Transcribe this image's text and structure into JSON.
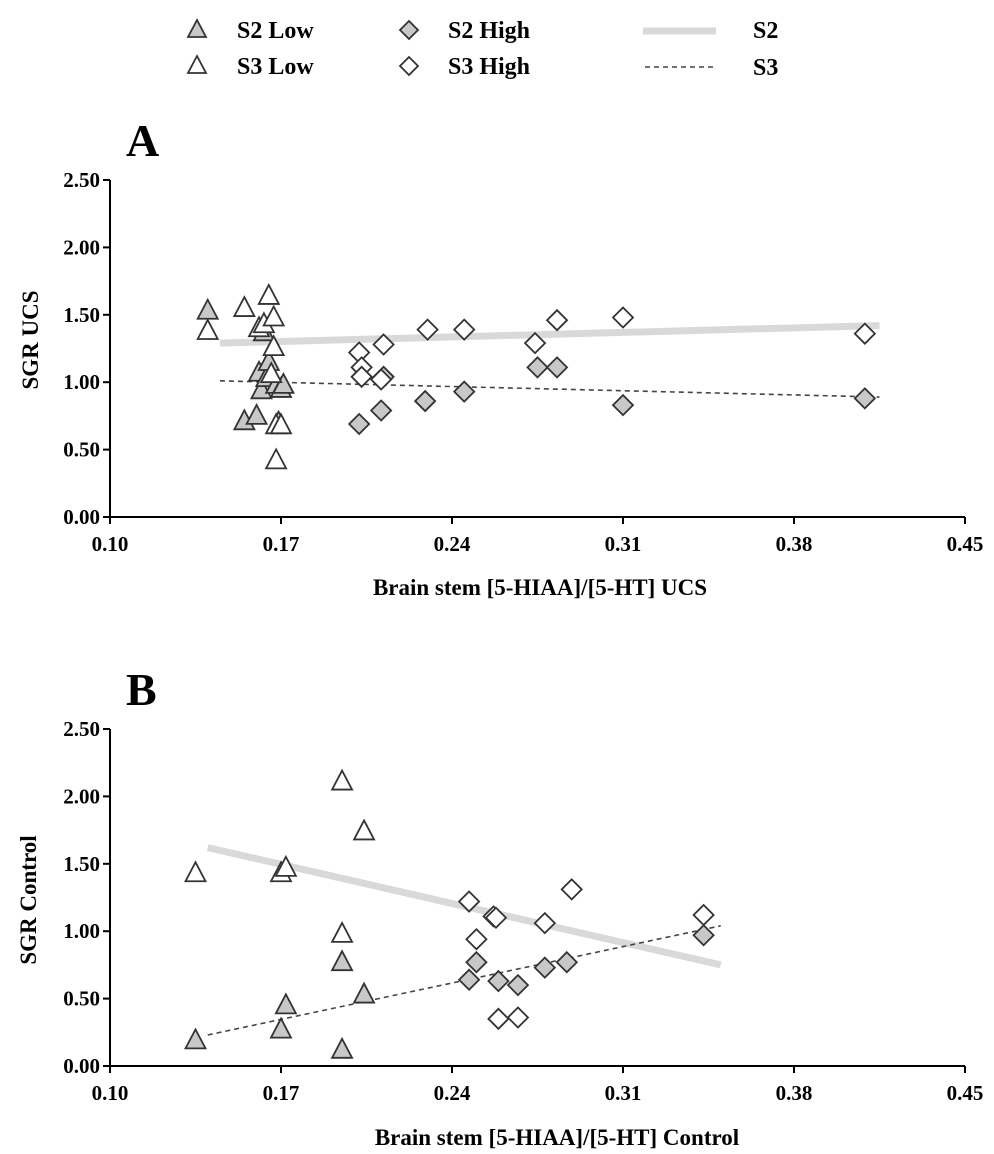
{
  "legend": {
    "items": [
      {
        "key": "s2_low",
        "label": "S2 Low",
        "kind": "triangle",
        "fill": "#c8c8c8"
      },
      {
        "key": "s3_low",
        "label": "S3 Low",
        "kind": "triangle",
        "fill": "#ffffff"
      },
      {
        "key": "s2_high",
        "label": "S2 High",
        "kind": "diamond",
        "fill": "#c8c8c8"
      },
      {
        "key": "s3_high",
        "label": "S3 High",
        "kind": "diamond",
        "fill": "#ffffff"
      },
      {
        "key": "s2_line",
        "label": "S2",
        "kind": "solid-line",
        "color": "#d9d9d9"
      },
      {
        "key": "s3_line",
        "label": "S3",
        "kind": "dashed-line",
        "color": "#444444"
      }
    ]
  },
  "chart_data": [
    {
      "panel": "A",
      "type": "scatter",
      "xlabel": "Brain stem [5-HIAA]/[5-HT] UCS",
      "ylabel": "SGR UCS",
      "xlim": [
        0.1,
        0.45
      ],
      "ylim": [
        0.0,
        2.5
      ],
      "xticks": [
        "0.10",
        "0.17",
        "0.24",
        "0.31",
        "0.38",
        "0.45"
      ],
      "yticks": [
        "0.00",
        "0.50",
        "1.00",
        "1.50",
        "2.00",
        "2.50"
      ],
      "series": [
        {
          "name": "S2 Low",
          "marker": "triangle",
          "fill": "#c8c8c8",
          "x": [
            0.14,
            0.155,
            0.16,
            0.161,
            0.162,
            0.163,
            0.164,
            0.165,
            0.168,
            0.169,
            0.17,
            0.171
          ],
          "y": [
            1.53,
            0.71,
            0.75,
            1.07,
            0.94,
            1.37,
            1.03,
            1.15,
            0.98,
            0.7,
            0.95,
            0.98
          ]
        },
        {
          "name": "S3 Low",
          "marker": "triangle",
          "fill": "#ffffff",
          "x": [
            0.14,
            0.155,
            0.161,
            0.163,
            0.165,
            0.166,
            0.167,
            0.167,
            0.168,
            0.168,
            0.17
          ],
          "y": [
            1.38,
            1.55,
            1.4,
            1.43,
            1.64,
            1.06,
            1.48,
            1.26,
            0.68,
            0.42,
            0.68
          ]
        },
        {
          "name": "S2 High",
          "marker": "diamond",
          "fill": "#c8c8c8",
          "x": [
            0.202,
            0.211,
            0.212,
            0.229,
            0.245,
            0.275,
            0.283,
            0.31,
            0.409
          ],
          "y": [
            0.69,
            0.79,
            1.04,
            0.86,
            0.93,
            1.11,
            1.11,
            0.83,
            0.88
          ]
        },
        {
          "name": "S3 High",
          "marker": "diamond",
          "fill": "#ffffff",
          "x": [
            0.202,
            0.203,
            0.203,
            0.211,
            0.212,
            0.23,
            0.245,
            0.274,
            0.283,
            0.31,
            0.409
          ],
          "y": [
            1.22,
            1.11,
            1.04,
            1.02,
            1.28,
            1.39,
            1.39,
            1.29,
            1.46,
            1.48,
            1.36
          ]
        }
      ],
      "lines": [
        {
          "name": "S2",
          "style": "solid",
          "x": [
            0.145,
            0.415
          ],
          "y": [
            1.29,
            1.42
          ]
        },
        {
          "name": "S3",
          "style": "dashed",
          "x": [
            0.145,
            0.415
          ],
          "y": [
            1.01,
            0.89
          ]
        }
      ]
    },
    {
      "panel": "B",
      "type": "scatter",
      "xlabel": "Brain stem [5-HIAA]/[5-HT] Control",
      "ylabel": "SGR Control",
      "xlim": [
        0.1,
        0.45
      ],
      "ylim": [
        0.0,
        2.5
      ],
      "xticks": [
        "0.10",
        "0.17",
        "0.24",
        "0.31",
        "0.38",
        "0.45"
      ],
      "yticks": [
        "0.00",
        "0.50",
        "1.00",
        "1.50",
        "2.00",
        "2.50"
      ],
      "series": [
        {
          "name": "S2 Low",
          "marker": "triangle",
          "fill": "#c8c8c8",
          "x": [
            0.135,
            0.17,
            0.172,
            0.195,
            0.195,
            0.204
          ],
          "y": [
            0.19,
            0.27,
            0.45,
            0.77,
            0.12,
            0.53
          ]
        },
        {
          "name": "S3 Low",
          "marker": "triangle",
          "fill": "#ffffff",
          "x": [
            0.135,
            0.17,
            0.172,
            0.195,
            0.195,
            0.204
          ],
          "y": [
            1.43,
            1.43,
            1.47,
            2.11,
            0.98,
            1.74
          ]
        },
        {
          "name": "S2 High",
          "marker": "diamond",
          "fill": "#c8c8c8",
          "x": [
            0.247,
            0.25,
            0.259,
            0.267,
            0.278,
            0.287,
            0.343
          ],
          "y": [
            0.64,
            0.77,
            0.63,
            0.6,
            0.73,
            0.77,
            0.97
          ]
        },
        {
          "name": "S3 High",
          "marker": "diamond",
          "fill": "#ffffff",
          "x": [
            0.247,
            0.25,
            0.257,
            0.258,
            0.259,
            0.267,
            0.278,
            0.289,
            0.343
          ],
          "y": [
            1.22,
            0.94,
            1.11,
            1.1,
            0.35,
            0.36,
            1.06,
            1.31,
            1.12
          ]
        }
      ],
      "lines": [
        {
          "name": "S2",
          "style": "solid",
          "x": [
            0.14,
            0.35
          ],
          "y": [
            1.62,
            0.75
          ]
        },
        {
          "name": "S3",
          "style": "dashed",
          "x": [
            0.14,
            0.35
          ],
          "y": [
            0.23,
            1.04
          ]
        }
      ]
    }
  ]
}
